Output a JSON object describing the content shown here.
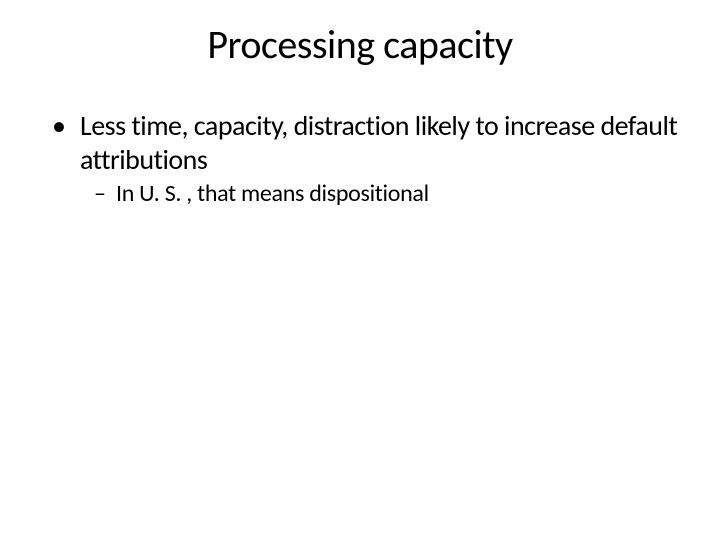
{
  "slide": {
    "title": "Processing capacity",
    "bullets": {
      "level1": {
        "marker": "•",
        "text": "Less time, capacity, distraction likely to increase default attributions"
      },
      "level2": {
        "marker": "–",
        "text": "In U. S. , that means dispositional"
      }
    }
  },
  "styling": {
    "background_color": "#ffffff",
    "text_color": "#000000",
    "title_fontsize": 40,
    "title_fontweight": 400,
    "body_l1_fontsize": 28,
    "body_l2_fontsize": 24,
    "font_family": "Calibri",
    "slide_width": 720,
    "slide_height": 540
  }
}
